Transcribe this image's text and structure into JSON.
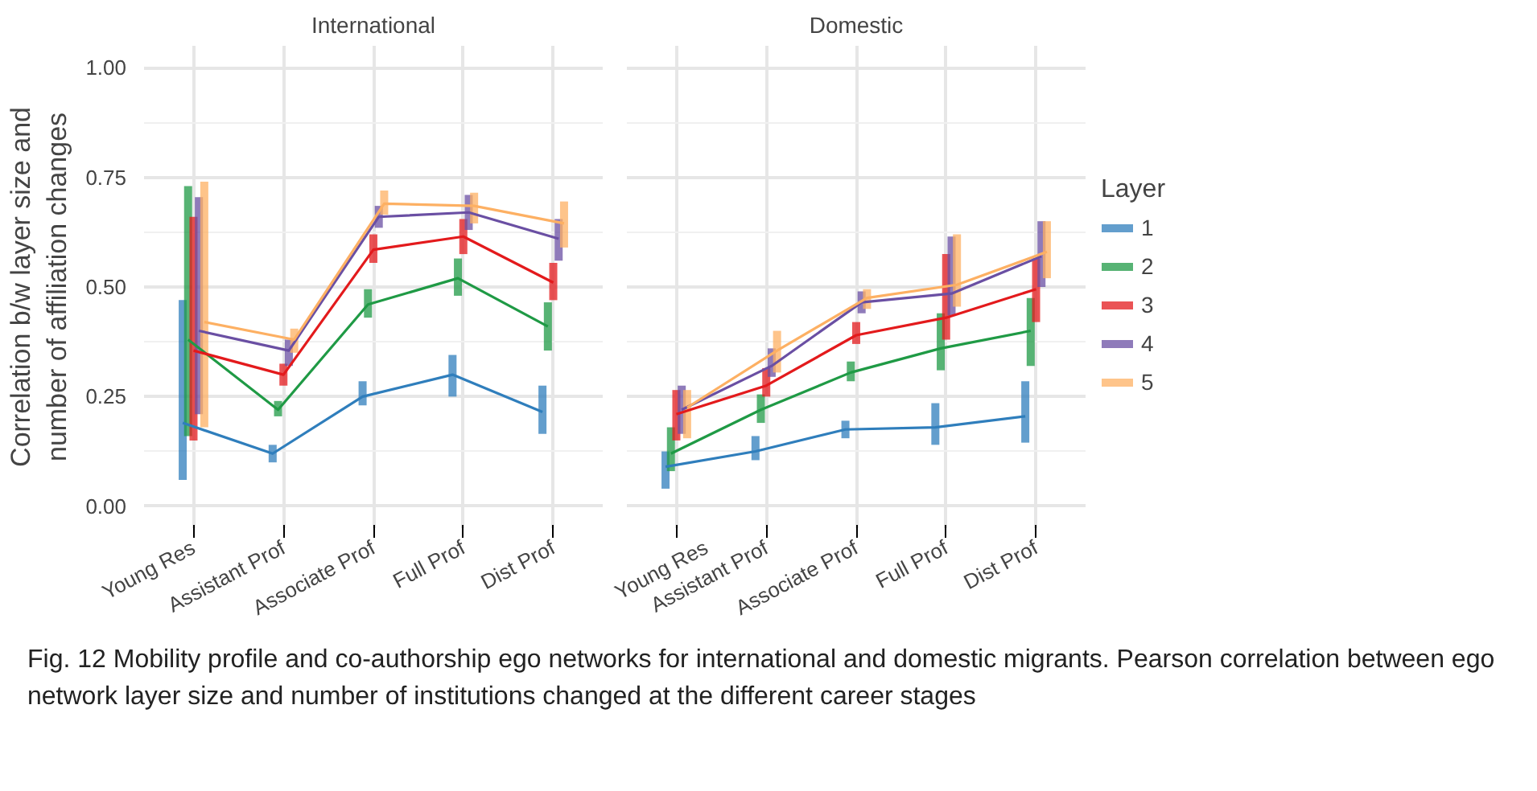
{
  "chart_data": [
    {
      "type": "line",
      "title": "International",
      "ylabel": "Correlation b/w layer size and\nnumber of affiliation changes",
      "categories": [
        "Young Res",
        "Assistant Prof",
        "Associate Prof",
        "Full Prof",
        "Dist Prof"
      ],
      "ylim": [
        -0.05,
        1.05
      ],
      "yticks": [
        {
          "value": 0,
          "label": "0.00"
        },
        {
          "value": 0.25,
          "label": "0.25"
        },
        {
          "value": 0.5,
          "label": "0.50"
        },
        {
          "value": 0.75,
          "label": "0.75"
        },
        {
          "value": 1,
          "label": "1.00"
        }
      ],
      "grid": true,
      "series": [
        {
          "color": "#2f7ebc",
          "values": [
            0.19,
            0.12,
            0.25,
            0.3,
            0.215
          ],
          "errors": [
            [
              0.06,
              0.47
            ],
            [
              0.1,
              0.14
            ],
            [
              0.23,
              0.285
            ],
            [
              0.25,
              0.345
            ],
            [
              0.165,
              0.275
            ]
          ]
        },
        {
          "color": "#1f9a45",
          "values": [
            0.38,
            0.22,
            0.46,
            0.52,
            0.41
          ],
          "errors": [
            [
              0.16,
              0.73
            ],
            [
              0.205,
              0.24
            ],
            [
              0.43,
              0.495
            ],
            [
              0.48,
              0.565
            ],
            [
              0.355,
              0.465
            ]
          ]
        },
        {
          "color": "#e31a1c",
          "values": [
            0.355,
            0.3,
            0.585,
            0.615,
            0.51
          ],
          "errors": [
            [
              0.15,
              0.66
            ],
            [
              0.275,
              0.325
            ],
            [
              0.555,
              0.62
            ],
            [
              0.575,
              0.655
            ],
            [
              0.47,
              0.555
            ]
          ]
        },
        {
          "color": "#6a4fa3",
          "values": [
            0.4,
            0.355,
            0.66,
            0.67,
            0.61
          ],
          "errors": [
            [
              0.21,
              0.705
            ],
            [
              0.32,
              0.38
            ],
            [
              0.635,
              0.685
            ],
            [
              0.63,
              0.71
            ],
            [
              0.56,
              0.655
            ]
          ]
        },
        {
          "color": "#fdb063",
          "values": [
            0.42,
            0.38,
            0.69,
            0.685,
            0.645
          ],
          "errors": [
            [
              0.18,
              0.74
            ],
            [
              0.35,
              0.405
            ],
            [
              0.665,
              0.72
            ],
            [
              0.645,
              0.715
            ],
            [
              0.59,
              0.695
            ]
          ]
        }
      ],
      "annotations": [
        "Fig. 12  Mobility profile and co-authorship ego networks for international and domestic migrants. Pearson correlation between ego network layer size and number of institutions changed at the different career stages"
      ]
    },
    {
      "type": "line",
      "title": "Domestic",
      "categories": [
        "Young Res",
        "Assistant Prof",
        "Associate Prof",
        "Full Prof",
        "Dist Prof"
      ],
      "ylim": [
        -0.05,
        1.05
      ],
      "yticks": [
        {
          "value": 0,
          "label": null
        },
        {
          "value": 0.25,
          "label": null
        },
        {
          "value": 0.5,
          "label": null
        },
        {
          "value": 0.75,
          "label": null
        },
        {
          "value": 1,
          "label": null
        }
      ],
      "grid": true,
      "tick_labels": "x",
      "legend": "right",
      "legend_title": "Layer",
      "series": [
        {
          "name": "1",
          "color": "#2f7ebc",
          "values": [
            0.09,
            0.125,
            0.175,
            0.18,
            0.205
          ],
          "errors": [
            [
              0.04,
              0.125
            ],
            [
              0.105,
              0.16
            ],
            [
              0.155,
              0.195
            ],
            [
              0.14,
              0.235
            ],
            [
              0.145,
              0.285
            ]
          ]
        },
        {
          "name": "2",
          "color": "#1f9a45",
          "values": [
            0.12,
            0.22,
            0.305,
            0.36,
            0.4
          ],
          "errors": [
            [
              0.08,
              0.18
            ],
            [
              0.19,
              0.255
            ],
            [
              0.285,
              0.33
            ],
            [
              0.31,
              0.44
            ],
            [
              0.32,
              0.475
            ]
          ]
        },
        {
          "name": "3",
          "color": "#e31a1c",
          "values": [
            0.21,
            0.275,
            0.39,
            0.43,
            0.495
          ],
          "errors": [
            [
              0.15,
              0.265
            ],
            [
              0.25,
              0.315
            ],
            [
              0.37,
              0.42
            ],
            [
              0.38,
              0.575
            ],
            [
              0.42,
              0.565
            ]
          ]
        },
        {
          "name": "4",
          "color": "#6a4fa3",
          "values": [
            0.22,
            0.32,
            0.465,
            0.485,
            0.57
          ],
          "errors": [
            [
              0.165,
              0.275
            ],
            [
              0.295,
              0.36
            ],
            [
              0.44,
              0.49
            ],
            [
              0.435,
              0.615
            ],
            [
              0.5,
              0.65
            ]
          ]
        },
        {
          "name": "5",
          "color": "#fdb063",
          "values": [
            0.225,
            0.355,
            0.475,
            0.505,
            0.58
          ],
          "errors": [
            [
              0.155,
              0.265
            ],
            [
              0.305,
              0.4
            ],
            [
              0.45,
              0.495
            ],
            [
              0.455,
              0.62
            ],
            [
              0.52,
              0.65
            ]
          ]
        }
      ]
    }
  ]
}
